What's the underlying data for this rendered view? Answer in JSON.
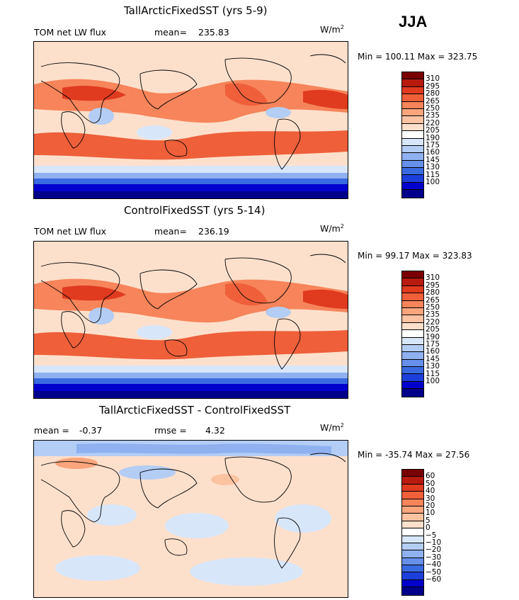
{
  "season": "JJA",
  "units_base": "W/m",
  "units_exp": "2",
  "colors": {
    "abs_levels": [
      "#00008b",
      "#0000cd",
      "#1c3fdb",
      "#3a6ae0",
      "#6690ea",
      "#8fb1f0",
      "#b3cdf5",
      "#d8e6fa",
      "#ffffff",
      "#fde0cc",
      "#fcc3a3",
      "#fba57d",
      "#f7845a",
      "#ee5f3a",
      "#e03a1f",
      "#b81a0e",
      "#7a0000"
    ],
    "diff_levels": [
      "#00008b",
      "#0000cd",
      "#1c3fdb",
      "#3a6ae0",
      "#6690ea",
      "#8fb1f0",
      "#b3cdf5",
      "#d8e6fa",
      "#ffffff",
      "#fde0cc",
      "#fcc3a3",
      "#fba57d",
      "#f7845a",
      "#ee5f3a",
      "#e03a1f",
      "#b81a0e",
      "#7a0000"
    ]
  },
  "panels": [
    {
      "title": "TallArcticFixedSST (yrs 5-9)",
      "left_label": "TOM net LW flux",
      "stat1_label": "mean=",
      "stat1_value": "235.83",
      "stat2_label": "",
      "stat2_value": "",
      "minmax": "Min = 100.11 Max = 323.75"
    },
    {
      "title": "ControlFixedSST (yrs 5-14)",
      "left_label": "TOM net LW flux",
      "stat1_label": "mean=",
      "stat1_value": "236.19",
      "stat2_label": "",
      "stat2_value": "",
      "minmax": "Min =  99.17 Max = 323.83"
    },
    {
      "title": "TallArcticFixedSST - ControlFixedSST",
      "left_label": "mean =",
      "stat1_label": "",
      "stat1_value": "-0.37",
      "stat2_label": "rmse =",
      "stat2_value": "4.32",
      "minmax": "Min = -35.74 Max =  27.56"
    }
  ],
  "chart_data": [
    {
      "type": "heatmap",
      "title": "TallArcticFixedSST (yrs 5-9)",
      "variable": "TOM net LW flux",
      "units": "W/m2",
      "mean": 235.83,
      "min": 100.11,
      "max": 323.75,
      "colorbar_levels": [
        310,
        295,
        280,
        265,
        250,
        235,
        220,
        205,
        190,
        175,
        160,
        145,
        130,
        115,
        100
      ]
    },
    {
      "type": "heatmap",
      "title": "ControlFixedSST (yrs 5-14)",
      "variable": "TOM net LW flux",
      "units": "W/m2",
      "mean": 236.19,
      "min": 99.17,
      "max": 323.83,
      "colorbar_levels": [
        310,
        295,
        280,
        265,
        250,
        235,
        220,
        205,
        190,
        175,
        160,
        145,
        130,
        115,
        100
      ]
    },
    {
      "type": "heatmap",
      "title": "TallArcticFixedSST - ControlFixedSST",
      "units": "W/m2",
      "mean": -0.37,
      "rmse": 4.32,
      "min": -35.74,
      "max": 27.56,
      "colorbar_levels": [
        60,
        50,
        40,
        30,
        20,
        10,
        5,
        0,
        -5,
        -10,
        -20,
        -30,
        -40,
        -50,
        -60
      ]
    }
  ]
}
